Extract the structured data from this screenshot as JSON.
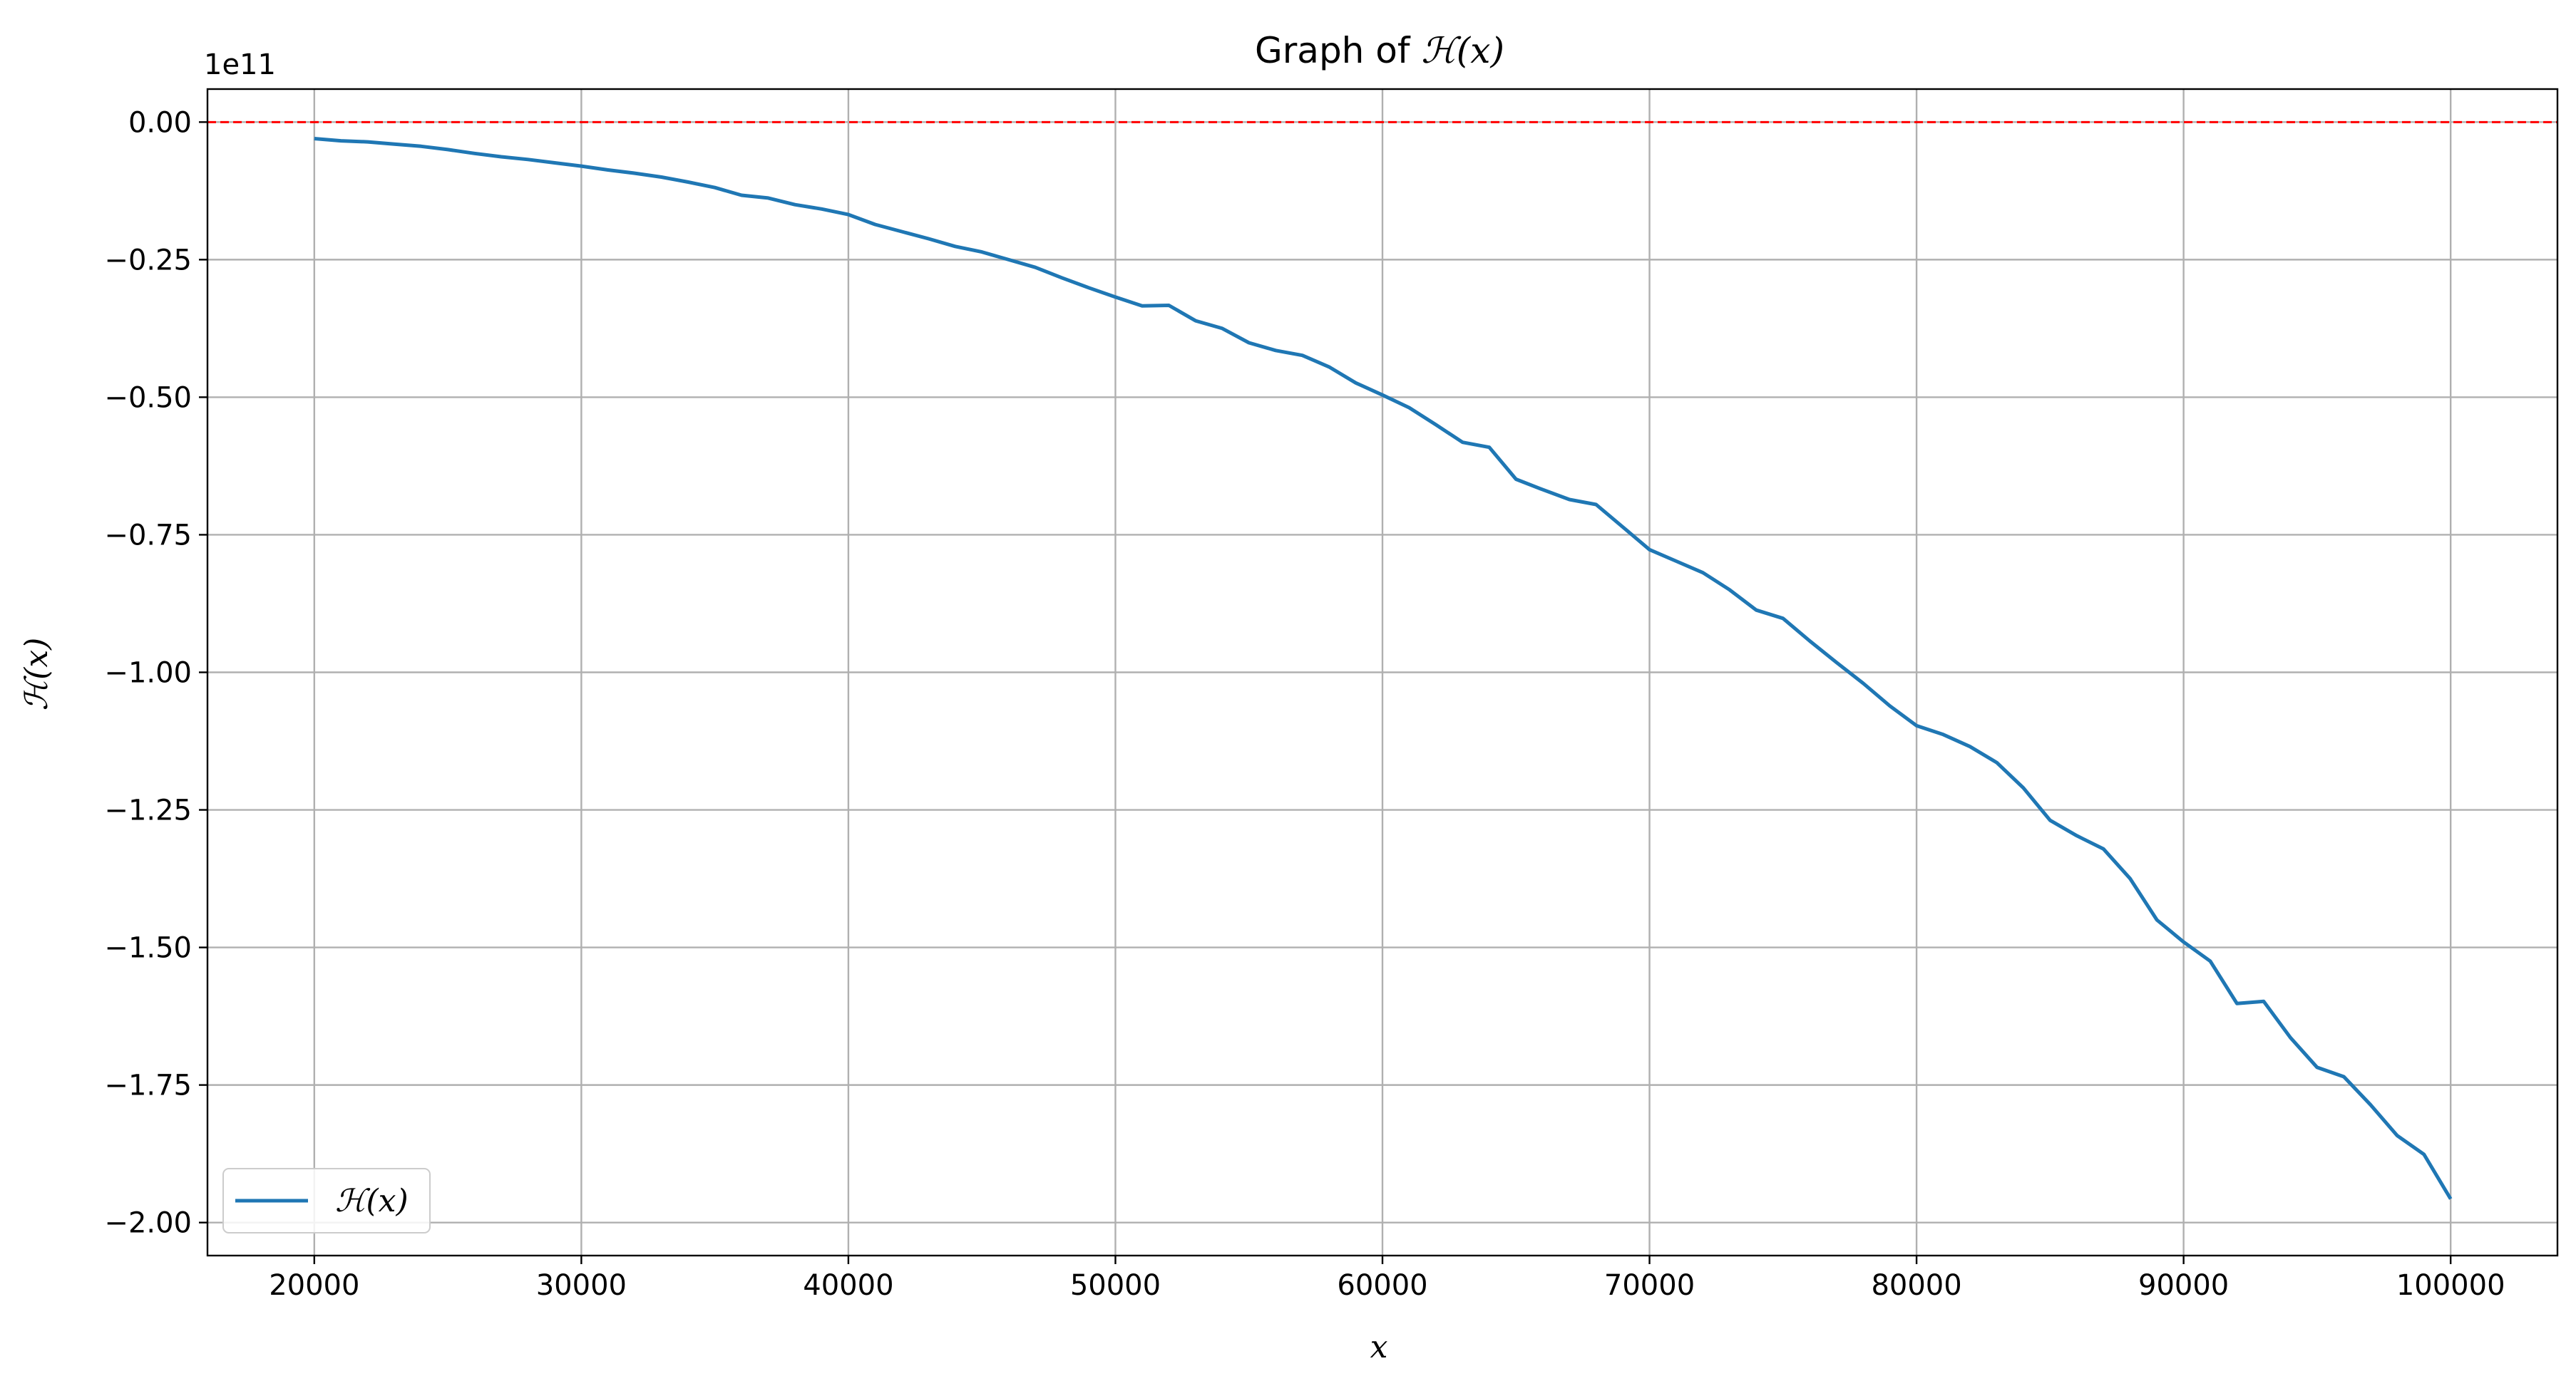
{
  "chart_data": {
    "type": "line",
    "title_prefix": "Graph of ",
    "title_math": "ℋ(x)",
    "xlabel": "x",
    "ylabel": "ℋ(x)",
    "y_offset_label": "1e11",
    "xlim": [
      16000,
      104000
    ],
    "ylim": [
      -2.06,
      0.06
    ],
    "x_ticks": [
      20000,
      30000,
      40000,
      50000,
      60000,
      70000,
      80000,
      90000,
      100000
    ],
    "x_tick_labels": [
      "20000",
      "30000",
      "40000",
      "50000",
      "60000",
      "70000",
      "80000",
      "90000",
      "100000"
    ],
    "y_ticks": [
      0.0,
      -0.25,
      -0.5,
      -0.75,
      -1.0,
      -1.25,
      -1.5,
      -1.75,
      -2.0
    ],
    "y_tick_labels": [
      "0.00",
      "−0.25",
      "−0.50",
      "−0.75",
      "−1.00",
      "−1.25",
      "−1.50",
      "−1.75",
      "−2.00"
    ],
    "grid": true,
    "legend_position": "lower-left",
    "reference_line": {
      "y": 0.0,
      "color": "#ff0000",
      "style": "dashed"
    },
    "series": [
      {
        "name": "ℋ(x)",
        "color": "#1f77b4",
        "x": [
          20000,
          21000,
          22000,
          23000,
          24000,
          25000,
          26000,
          27000,
          28000,
          29000,
          30000,
          31000,
          32000,
          33000,
          34000,
          35000,
          36000,
          37000,
          38000,
          39000,
          40000,
          41000,
          42000,
          43000,
          44000,
          45000,
          46000,
          47000,
          48000,
          49000,
          50000,
          51000,
          52000,
          53000,
          54000,
          55000,
          56000,
          57000,
          58000,
          59000,
          60000,
          61000,
          62000,
          63000,
          64000,
          65000,
          66000,
          67000,
          68000,
          69000,
          70000,
          71000,
          72000,
          73000,
          74000,
          75000,
          76000,
          77000,
          78000,
          79000,
          80000,
          81000,
          82000,
          83000,
          84000,
          85000,
          86000,
          87000,
          88000,
          89000,
          90000,
          91000,
          92000,
          93000,
          94000,
          95000,
          96000,
          97000,
          98000,
          99000,
          100000
        ],
        "y": [
          -0.03,
          -0.034,
          -0.036,
          -0.04,
          -0.044,
          -0.05,
          -0.057,
          -0.063,
          -0.068,
          -0.074,
          -0.08,
          -0.087,
          -0.093,
          -0.1,
          -0.109,
          -0.119,
          -0.133,
          -0.138,
          -0.15,
          -0.158,
          -0.168,
          -0.186,
          -0.199,
          -0.212,
          -0.226,
          -0.236,
          -0.25,
          -0.264,
          -0.283,
          -0.301,
          -0.318,
          -0.334,
          -0.333,
          -0.361,
          -0.375,
          -0.401,
          -0.415,
          -0.424,
          -0.445,
          -0.474,
          -0.496,
          -0.519,
          -0.55,
          -0.582,
          -0.591,
          -0.649,
          -0.668,
          -0.686,
          -0.695,
          -0.736,
          -0.777,
          -0.798,
          -0.819,
          -0.85,
          -0.887,
          -0.902,
          -0.943,
          -0.982,
          -1.02,
          -1.061,
          -1.097,
          -1.113,
          -1.135,
          -1.164,
          -1.21,
          -1.269,
          -1.297,
          -1.321,
          -1.375,
          -1.45,
          -1.49,
          -1.525,
          -1.602,
          -1.598,
          -1.664,
          -1.718,
          -1.735,
          -1.786,
          -1.842,
          -1.876,
          -1.957
        ]
      }
    ]
  }
}
